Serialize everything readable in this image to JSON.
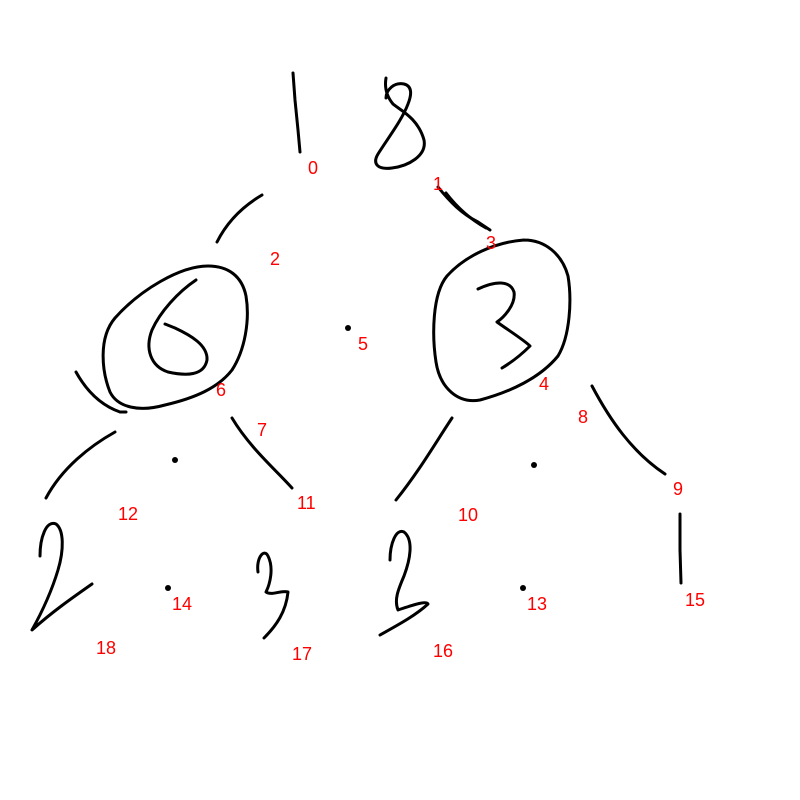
{
  "colors": {
    "ink": "#000000",
    "label": "#ff0000",
    "background": "#ffffff"
  },
  "labels": {
    "l0": "0",
    "l1": "1",
    "l2": "2",
    "l3": "3",
    "l4": "4",
    "l5": "5",
    "l6": "6",
    "l7": "7",
    "l8": "8",
    "l9": "9",
    "l10": "10",
    "l11": "11",
    "l12": "12",
    "l13": "13",
    "l14": "14",
    "l15": "15",
    "l16": "16",
    "l17": "17",
    "l18": "18"
  }
}
